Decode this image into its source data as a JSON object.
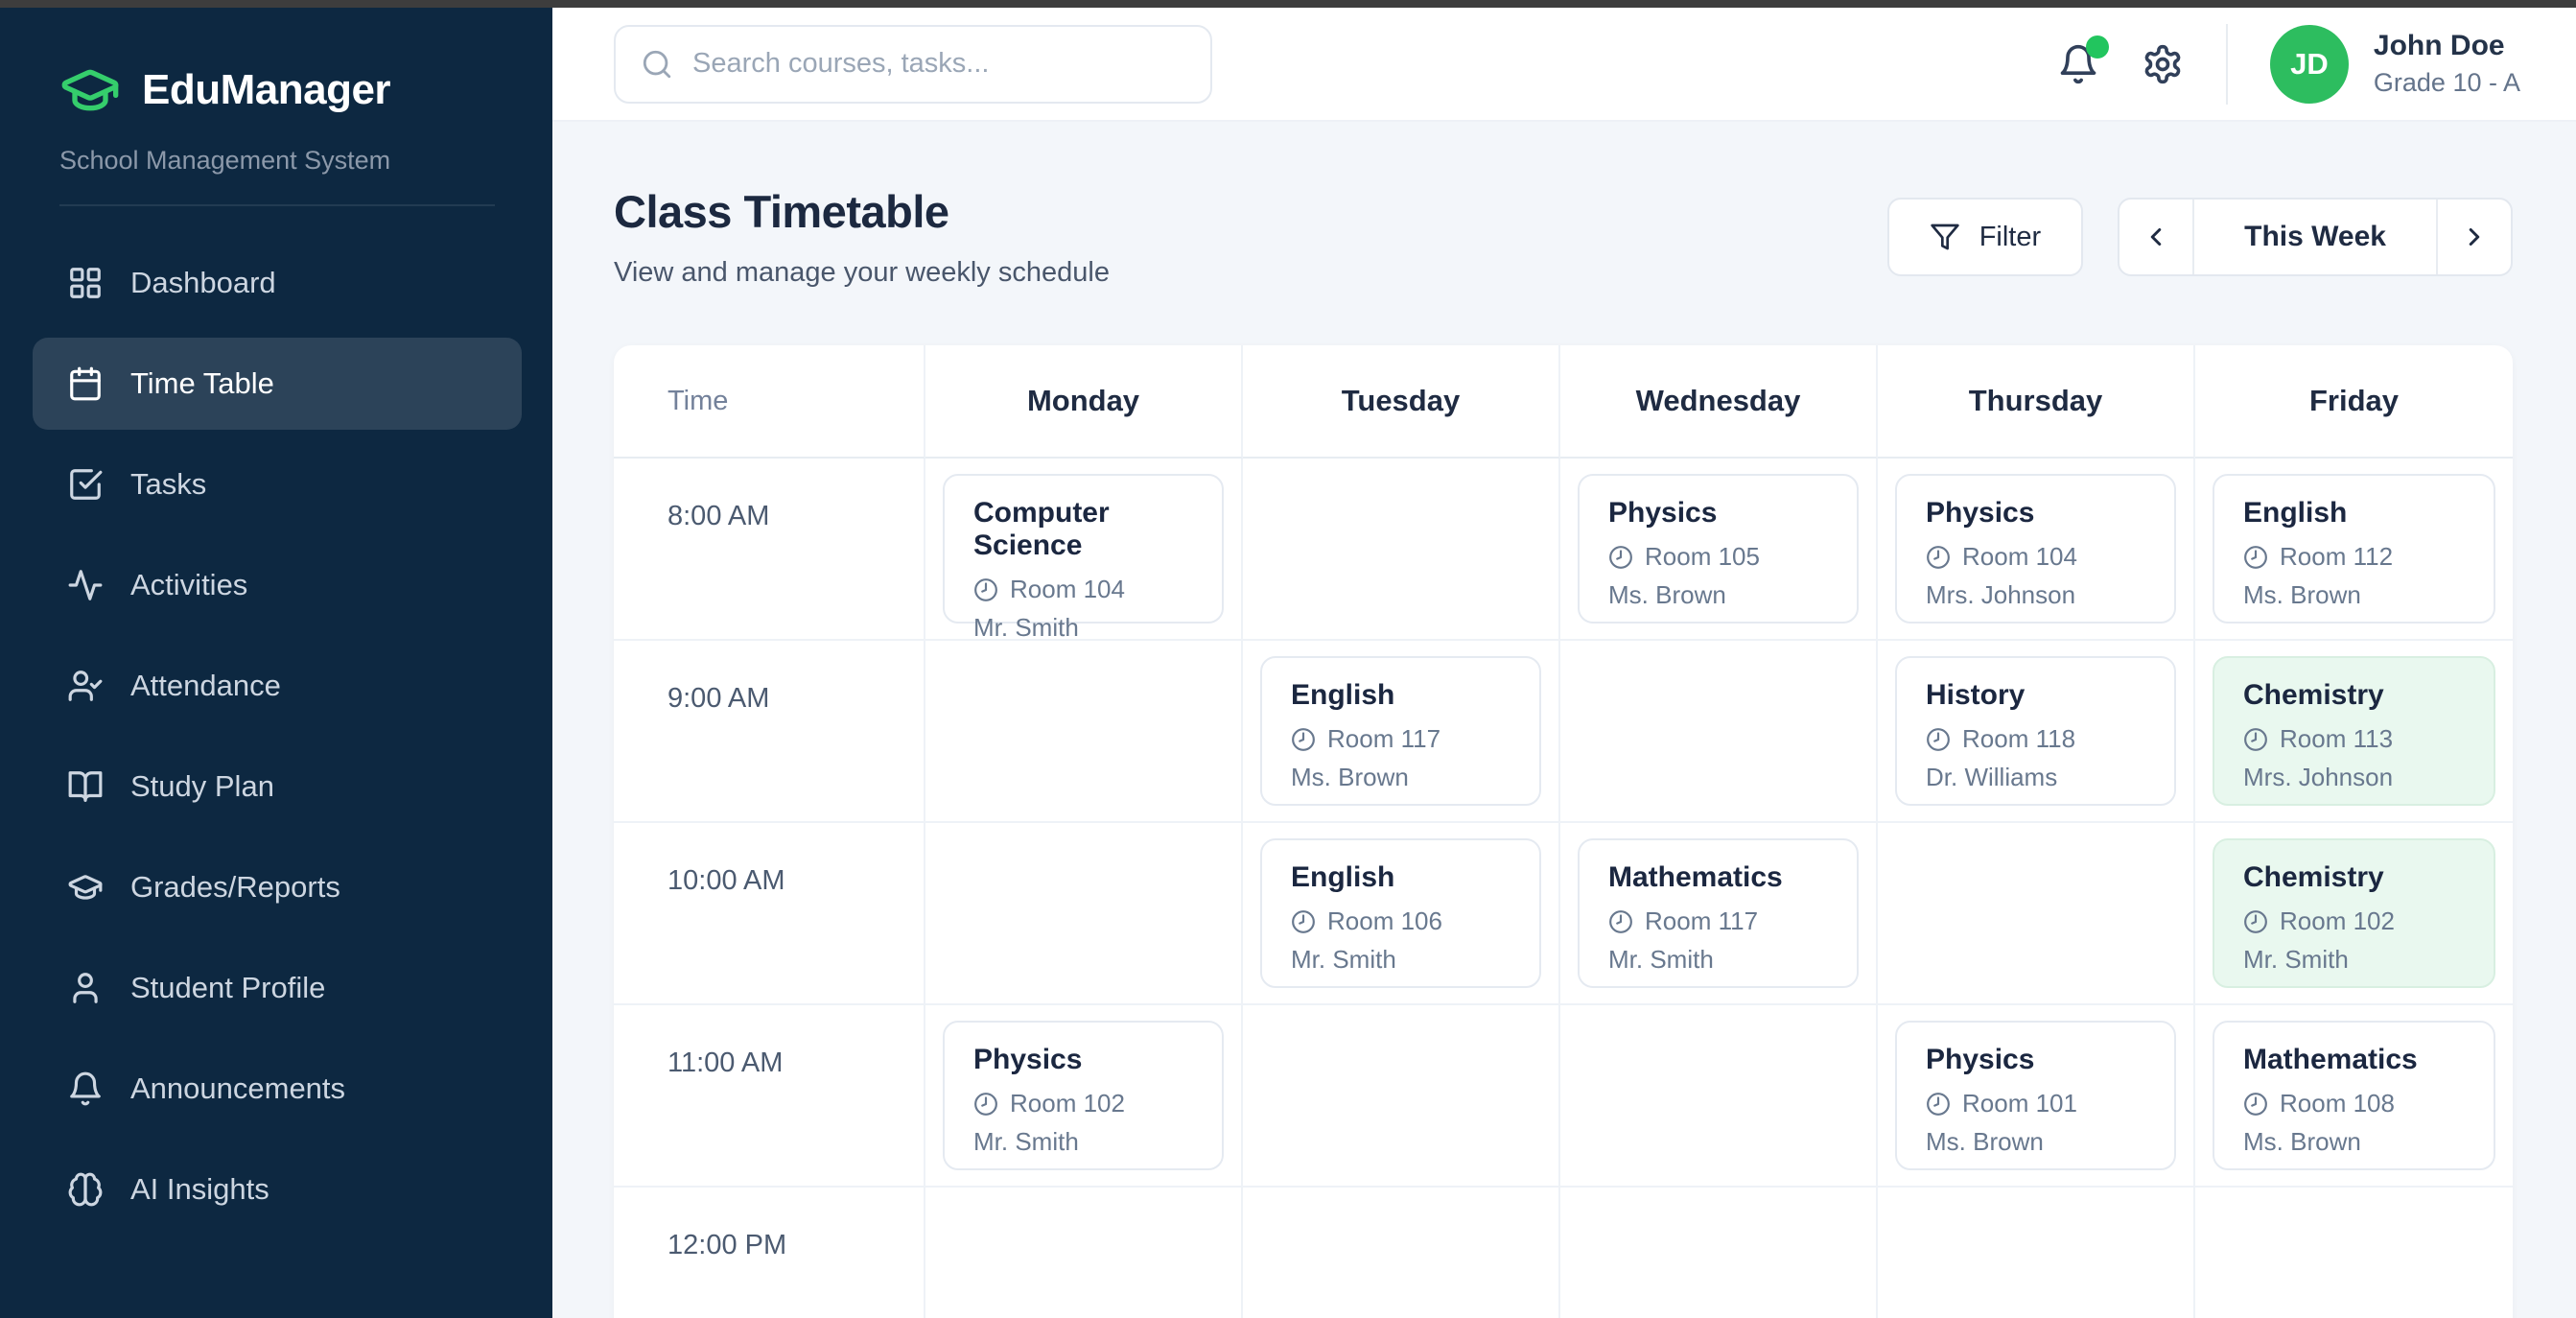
{
  "colors": {
    "accent_green": "#22c55e",
    "logo_green": "#35ce6c",
    "sidebar_bg": "#0d2841",
    "main_bg": "#f3f6fa",
    "highlight_card_bg": "#e9f8ef",
    "top_strip": "#3d3d3d"
  },
  "sidebar": {
    "brand": {
      "name": "EduManager",
      "subtitle": "School Management System",
      "icon": "graduation-cap-icon"
    },
    "items": [
      {
        "label": "Dashboard",
        "icon": "dashboard-icon",
        "active": false
      },
      {
        "label": "Time Table",
        "icon": "calendar-icon",
        "active": true
      },
      {
        "label": "Tasks",
        "icon": "check-square-icon",
        "active": false
      },
      {
        "label": "Activities",
        "icon": "activity-icon",
        "active": false
      },
      {
        "label": "Attendance",
        "icon": "user-check-icon",
        "active": false
      },
      {
        "label": "Study Plan",
        "icon": "book-open-icon",
        "active": false
      },
      {
        "label": "Grades/Reports",
        "icon": "graduation-cap-icon",
        "active": false
      },
      {
        "label": "Student Profile",
        "icon": "user-icon",
        "active": false
      },
      {
        "label": "Announcements",
        "icon": "bell-icon",
        "active": false
      },
      {
        "label": "AI Insights",
        "icon": "brain-icon",
        "active": false
      }
    ]
  },
  "topbar": {
    "search_placeholder": "Search courses, tasks...",
    "icons": [
      "bell-icon",
      "gear-icon"
    ],
    "notification_dot": true,
    "user": {
      "initials": "JD",
      "name": "John Doe",
      "grade": "Grade 10 - A"
    }
  },
  "page": {
    "title": "Class Timetable",
    "subtitle": "View and manage your weekly schedule",
    "filter_label": "Filter",
    "week_label": "This Week"
  },
  "timetable": {
    "columns": [
      "Time",
      "Monday",
      "Tuesday",
      "Wednesday",
      "Thursday",
      "Friday"
    ],
    "rows": [
      {
        "time": "8:00 AM",
        "cells": [
          {
            "subject": "Computer Science",
            "room": "Room 104",
            "teacher": "Mr. Smith",
            "highlight": false
          },
          null,
          {
            "subject": "Physics",
            "room": "Room 105",
            "teacher": "Ms. Brown",
            "highlight": false
          },
          {
            "subject": "Physics",
            "room": "Room 104",
            "teacher": "Mrs. Johnson",
            "highlight": false
          },
          {
            "subject": "English",
            "room": "Room 112",
            "teacher": "Ms. Brown",
            "highlight": false
          }
        ]
      },
      {
        "time": "9:00 AM",
        "cells": [
          null,
          {
            "subject": "English",
            "room": "Room 117",
            "teacher": "Ms. Brown",
            "highlight": false
          },
          null,
          {
            "subject": "History",
            "room": "Room 118",
            "teacher": "Dr. Williams",
            "highlight": false
          },
          {
            "subject": "Chemistry",
            "room": "Room 113",
            "teacher": "Mrs. Johnson",
            "highlight": true
          }
        ]
      },
      {
        "time": "10:00 AM",
        "cells": [
          null,
          {
            "subject": "English",
            "room": "Room 106",
            "teacher": "Mr. Smith",
            "highlight": false
          },
          {
            "subject": "Mathematics",
            "room": "Room 117",
            "teacher": "Mr. Smith",
            "highlight": false
          },
          null,
          {
            "subject": "Chemistry",
            "room": "Room 102",
            "teacher": "Mr. Smith",
            "highlight": true
          }
        ]
      },
      {
        "time": "11:00 AM",
        "cells": [
          {
            "subject": "Physics",
            "room": "Room 102",
            "teacher": "Mr. Smith",
            "highlight": false
          },
          null,
          null,
          {
            "subject": "Physics",
            "room": "Room 101",
            "teacher": "Ms. Brown",
            "highlight": false
          },
          {
            "subject": "Mathematics",
            "room": "Room 108",
            "teacher": "Ms. Brown",
            "highlight": false
          }
        ]
      },
      {
        "time": "12:00 PM",
        "cells": [
          null,
          null,
          null,
          null,
          null
        ]
      }
    ]
  }
}
